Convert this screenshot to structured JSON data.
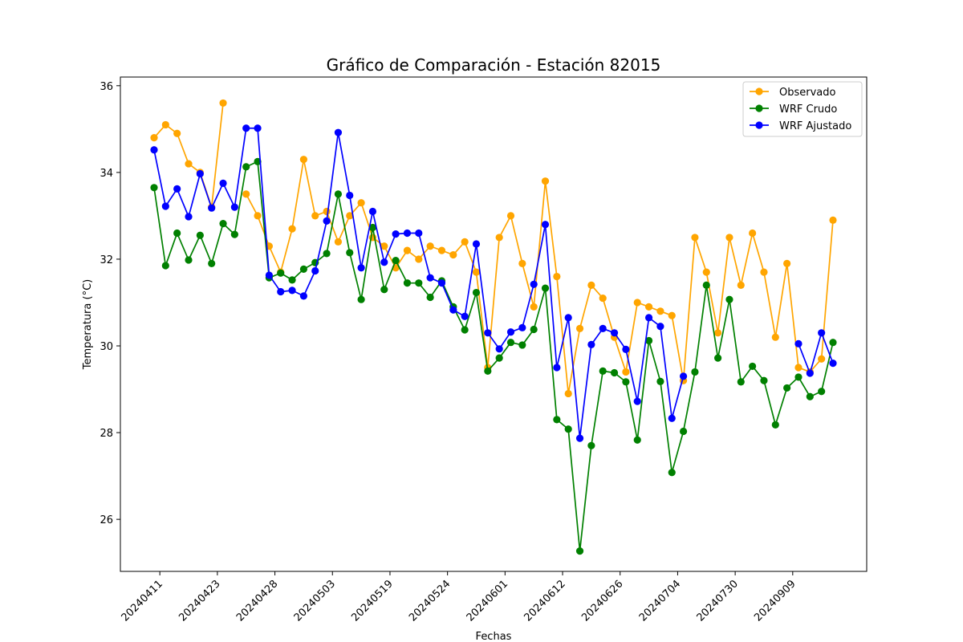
{
  "chart_data": {
    "type": "line",
    "title": "Gráfico de Comparación - Estación 82015",
    "xlabel": "Fechas",
    "ylabel": "Temperatura (°C)",
    "ylim": [
      24.8,
      36.2
    ],
    "yticks": [
      26,
      28,
      30,
      32,
      34,
      36
    ],
    "grid": false,
    "legend_position": "top-right",
    "x_tick_labels": [
      {
        "index": 0.5,
        "label": "20240411"
      },
      {
        "index": 5.5,
        "label": "20240423"
      },
      {
        "index": 10.5,
        "label": "20240428"
      },
      {
        "index": 15.5,
        "label": "20240503"
      },
      {
        "index": 20.5,
        "label": "20240519"
      },
      {
        "index": 25.5,
        "label": "20240524"
      },
      {
        "index": 30.5,
        "label": "20240601"
      },
      {
        "index": 35.5,
        "label": "20240612"
      },
      {
        "index": 40.5,
        "label": "20240626"
      },
      {
        "index": 45.5,
        "label": "20240704"
      },
      {
        "index": 50.5,
        "label": "20240730"
      },
      {
        "index": 55.5,
        "label": "20240909"
      }
    ],
    "n_points": 60,
    "series": [
      {
        "name": "Observado",
        "color": "#ffa500",
        "values": [
          34.8,
          35.1,
          34.9,
          34.2,
          34.0,
          33.2,
          35.6,
          null,
          33.5,
          33.0,
          32.3,
          31.7,
          32.7,
          34.3,
          33.0,
          33.1,
          32.4,
          33.0,
          33.3,
          32.5,
          32.3,
          31.8,
          32.2,
          32.0,
          32.3,
          32.2,
          32.1,
          32.4,
          31.7,
          29.5,
          32.5,
          33.0,
          31.9,
          30.9,
          33.8,
          31.6,
          28.9,
          30.4,
          31.4,
          31.1,
          30.2,
          29.4,
          31.0,
          30.9,
          30.8,
          30.7,
          29.2,
          32.5,
          31.7,
          30.3,
          32.5,
          31.4,
          32.6,
          31.7,
          30.2,
          31.9,
          29.5,
          29.4,
          29.7,
          32.9
        ]
      },
      {
        "name": "WRF Crudo",
        "color": "#008000",
        "values": [
          33.65,
          31.85,
          32.6,
          31.98,
          32.55,
          31.9,
          32.82,
          32.57,
          34.13,
          34.25,
          31.57,
          31.68,
          31.52,
          31.77,
          31.92,
          32.13,
          33.5,
          32.15,
          31.07,
          32.73,
          31.3,
          31.97,
          31.45,
          31.45,
          31.12,
          31.5,
          30.9,
          30.37,
          31.23,
          29.42,
          29.72,
          30.08,
          30.02,
          30.38,
          31.33,
          28.3,
          28.08,
          25.27,
          27.7,
          29.42,
          29.38,
          29.17,
          27.83,
          30.12,
          29.18,
          27.08,
          28.03,
          29.4,
          31.4,
          29.72,
          31.07,
          29.17,
          29.53,
          29.2,
          28.18,
          29.03,
          29.28,
          28.83,
          28.95,
          30.08
        ]
      },
      {
        "name": "WRF Ajustado",
        "color": "#0000ff",
        "values": [
          34.52,
          33.22,
          33.62,
          32.98,
          33.97,
          33.18,
          33.75,
          33.2,
          35.02,
          35.02,
          31.63,
          31.25,
          31.28,
          31.15,
          31.73,
          32.88,
          34.92,
          33.47,
          31.8,
          33.1,
          31.93,
          32.58,
          32.6,
          32.6,
          31.57,
          31.45,
          30.83,
          30.68,
          32.35,
          30.3,
          29.93,
          30.32,
          30.42,
          31.42,
          32.8,
          29.5,
          30.65,
          27.87,
          30.03,
          30.4,
          30.3,
          29.92,
          28.72,
          30.65,
          30.45,
          28.33,
          29.3,
          null,
          null,
          null,
          null,
          null,
          null,
          null,
          null,
          null,
          30.05,
          29.37,
          30.3,
          29.6
        ]
      }
    ]
  }
}
